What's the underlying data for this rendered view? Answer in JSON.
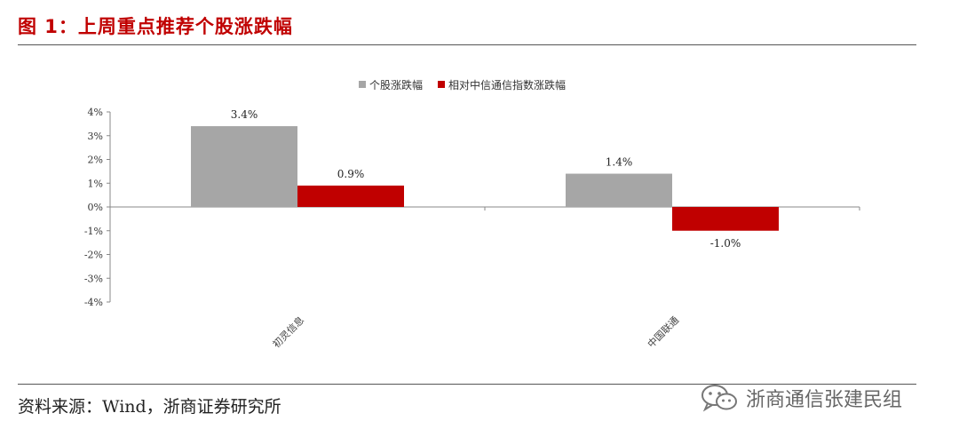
{
  "figure_title": "图 1：上周重点推荐个股涨跌幅",
  "source_note": "资料来源：Wind，浙商证券研究所",
  "watermark": {
    "text": "浙商通信张建民组",
    "icon": "wechat-icon"
  },
  "colors": {
    "title": "#c00000",
    "series_gray": "#a6a6a6",
    "series_red": "#c00000"
  },
  "chart_data": {
    "type": "bar",
    "categories": [
      "初灵信息",
      "中国联通"
    ],
    "series": [
      {
        "name": "个股涨跌幅",
        "values": [
          3.4,
          1.4
        ],
        "labels": [
          "3.4%",
          "1.4%"
        ],
        "color": "#a6a6a6"
      },
      {
        "name": "相对中信通信指数涨跌幅",
        "values": [
          0.9,
          -1.0
        ],
        "labels": [
          "0.9%",
          "-1.0%"
        ],
        "color": "#c00000"
      }
    ],
    "ylim": [
      -4,
      4
    ],
    "yticks": [
      4,
      3,
      2,
      1,
      0,
      -1,
      -2,
      -3,
      -4
    ],
    "ytick_labels": [
      "4%",
      "3%",
      "2%",
      "1%",
      "0%",
      "-1%",
      "-2%",
      "-3%",
      "-4%"
    ],
    "legend_position": "top-center",
    "grid": false
  }
}
